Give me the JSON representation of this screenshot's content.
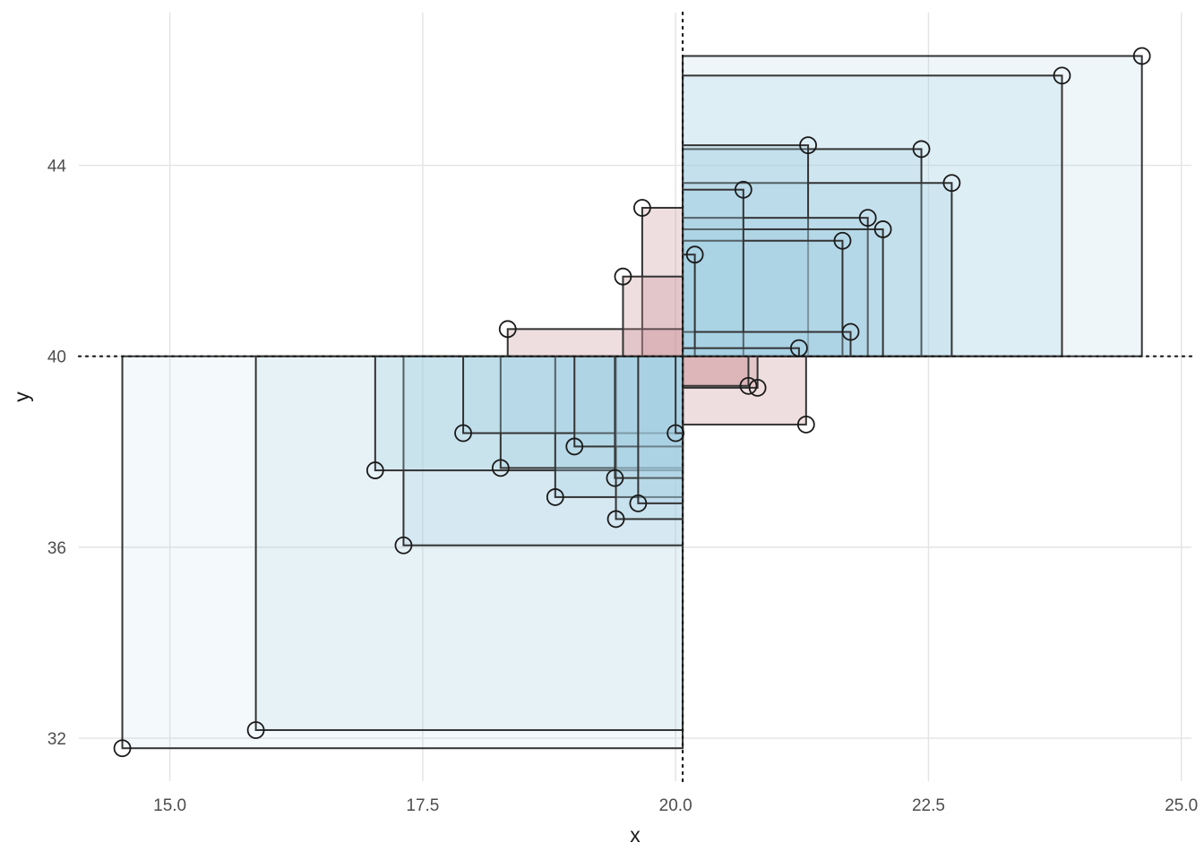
{
  "chart_data": {
    "type": "scatter",
    "title": "",
    "xlabel": "x",
    "ylabel": "y",
    "xlim": [
      14.1,
      25.1
    ],
    "ylim": [
      31.1,
      47.2
    ],
    "x_ticks": [
      15.0,
      17.5,
      20.0,
      22.5,
      25.0
    ],
    "x_tick_labels": [
      "15.0",
      "17.5",
      "20.0",
      "22.5",
      "25.0"
    ],
    "y_ticks": [
      32,
      36,
      40,
      44
    ],
    "y_tick_labels": [
      "32",
      "36",
      "40",
      "44"
    ],
    "grid": true,
    "reference_lines": {
      "x_mean": 20.07,
      "y_mean": 40.0
    },
    "fill_colors": {
      "positive_product": "#a6d1e3",
      "negative_product": "#c99095"
    },
    "rect_fill_alpha_range": [
      0.12,
      0.3
    ],
    "points": [
      {
        "x": 24.61,
        "y": 46.29
      },
      {
        "x": 23.82,
        "y": 45.88
      },
      {
        "x": 21.31,
        "y": 44.42
      },
      {
        "x": 22.43,
        "y": 44.34
      },
      {
        "x": 22.73,
        "y": 43.63
      },
      {
        "x": 20.67,
        "y": 43.49
      },
      {
        "x": 19.67,
        "y": 43.11
      },
      {
        "x": 21.9,
        "y": 42.9
      },
      {
        "x": 22.05,
        "y": 42.66
      },
      {
        "x": 21.65,
        "y": 42.42
      },
      {
        "x": 20.19,
        "y": 42.13
      },
      {
        "x": 19.48,
        "y": 41.67
      },
      {
        "x": 18.34,
        "y": 40.57
      },
      {
        "x": 21.73,
        "y": 40.51
      },
      {
        "x": 21.22,
        "y": 40.17
      },
      {
        "x": 20.72,
        "y": 39.38
      },
      {
        "x": 20.81,
        "y": 39.34
      },
      {
        "x": 21.29,
        "y": 38.57
      },
      {
        "x": 17.9,
        "y": 38.39
      },
      {
        "x": 20.0,
        "y": 38.39
      },
      {
        "x": 19.0,
        "y": 38.11
      },
      {
        "x": 17.03,
        "y": 37.61
      },
      {
        "x": 18.27,
        "y": 37.66
      },
      {
        "x": 19.4,
        "y": 37.45
      },
      {
        "x": 18.81,
        "y": 37.05
      },
      {
        "x": 19.63,
        "y": 36.92
      },
      {
        "x": 19.41,
        "y": 36.59
      },
      {
        "x": 17.31,
        "y": 36.04
      },
      {
        "x": 15.85,
        "y": 32.17
      },
      {
        "x": 14.53,
        "y": 31.79
      }
    ]
  }
}
